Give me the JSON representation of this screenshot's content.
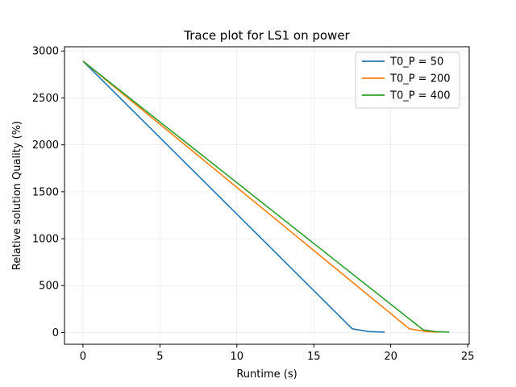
{
  "chart_data": {
    "type": "line",
    "title": "Trace plot for LS1 on power",
    "xlabel": "Runtime (s)",
    "ylabel": "Relative solution Quality (%)",
    "xlim": [
      -1.2,
      25.1
    ],
    "ylim": [
      -125,
      3045
    ],
    "xticks": [
      0,
      5,
      10,
      15,
      20,
      25
    ],
    "yticks": [
      0,
      500,
      1000,
      1500,
      2000,
      2500,
      3000
    ],
    "grid": true,
    "legend_position": "top-right",
    "series": [
      {
        "name": "T0_P = 50",
        "color": "#1f77b4",
        "x": [
          0,
          17.5,
          18.6,
          19.6
        ],
        "y": [
          2892,
          40,
          10,
          5
        ]
      },
      {
        "name": "T0_P = 200",
        "color": "#ff7f0e",
        "x": [
          0,
          21.2,
          22.3,
          23.1
        ],
        "y": [
          2892,
          40,
          10,
          5
        ]
      },
      {
        "name": "T0_P = 400",
        "color": "#2ca02c",
        "x": [
          0,
          22.1,
          22.9,
          23.8
        ],
        "y": [
          2892,
          30,
          10,
          5
        ]
      }
    ]
  }
}
